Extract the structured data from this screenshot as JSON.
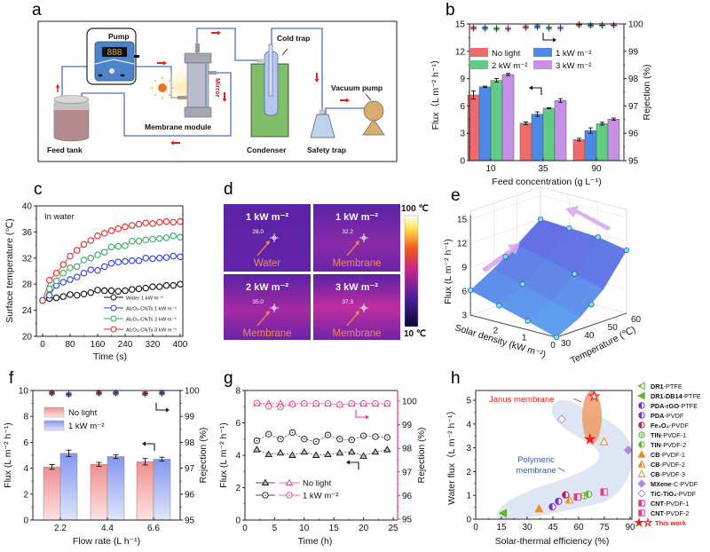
{
  "panel_labels": {
    "a": "a",
    "b": "b",
    "c": "c",
    "d": "d",
    "e": "e",
    "f": "f",
    "g": "g",
    "h": "h"
  },
  "schematic": {
    "pump": "Pump",
    "pump_display": "888",
    "mirror": "Mirror",
    "membrane_module": "Membrane module",
    "feed_tank": "Feed tank",
    "cold_trap": "Cold trap",
    "condenser": "Condenser",
    "safety_trap": "Safety trap",
    "vacuum_pump": "Vacuum pump",
    "colors": {
      "pipe": "#4a72c9",
      "flow_arrow": "#e32020",
      "condenser": "#7fbf6a",
      "module": "#a9adb8",
      "pump_body": "#4d83c9"
    }
  },
  "thermal_images": {
    "colorbar_max": "100 ℃",
    "colorbar_min": "10 ℃",
    "tiles": [
      {
        "title": "1 kW m⁻²",
        "reading": "28.0",
        "target": "Water"
      },
      {
        "title": "1 kW m⁻²",
        "reading": "32.2",
        "target": "Membrane"
      },
      {
        "title": "2 kW m⁻²",
        "reading": "35.0",
        "target": "Membrane"
      },
      {
        "title": "3 kW m⁻²",
        "reading": "37.3",
        "target": "Membrane"
      }
    ]
  },
  "chart_data": [
    {
      "panel": "b",
      "type": "bar",
      "categories": [
        "10",
        "35",
        "90"
      ],
      "xlabel": "Feed concentration (g L⁻¹)",
      "ylabel": "Flux（L m⁻² h⁻¹）",
      "y2label": "Rejection (%)",
      "ylim": [
        0,
        15
      ],
      "yticks": [
        "0",
        "3",
        "6",
        "9",
        "12",
        "15"
      ],
      "y2lim": [
        95,
        100
      ],
      "y2ticks": [
        "95",
        "96",
        "97",
        "98",
        "99",
        "100"
      ],
      "series": [
        {
          "name": "No light",
          "color": "#ef6b6b",
          "values": [
            7.2,
            4.1,
            2.3
          ],
          "errors": [
            0.45,
            0.15,
            0.15
          ],
          "rejection": [
            99.85,
            99.88,
            99.97
          ]
        },
        {
          "name": "1 kW m⁻²",
          "color": "#4a8ae6",
          "values": [
            8.1,
            5.1,
            3.3
          ],
          "errors": [
            0.08,
            0.25,
            0.3
          ],
          "rejection": [
            99.85,
            99.9,
            99.95
          ]
        },
        {
          "name": "2 kW m⁻²",
          "color": "#5fcb86",
          "values": [
            8.8,
            5.75,
            4.05
          ],
          "errors": [
            0.2,
            0.05,
            0.15
          ],
          "rejection": [
            99.83,
            99.85,
            99.95
          ]
        },
        {
          "name": "3 kW m⁻²",
          "color": "#c590e6",
          "values": [
            9.45,
            6.6,
            4.55
          ],
          "errors": [
            0.12,
            0.2,
            0.12
          ],
          "rejection": [
            99.83,
            99.85,
            99.95
          ]
        }
      ],
      "legend": "top"
    },
    {
      "panel": "c",
      "type": "line",
      "xlabel": "Time (s)",
      "ylabel": "Surface temperature (℃)",
      "annotation": "In water",
      "xlim": [
        0,
        400
      ],
      "xticks": [
        "0",
        "80",
        "160",
        "240",
        "320",
        "400"
      ],
      "ylim": [
        20,
        40
      ],
      "yticks": [
        "20",
        "24",
        "28",
        "32",
        "36",
        "40"
      ],
      "x": [
        0,
        20,
        40,
        60,
        80,
        100,
        120,
        140,
        160,
        180,
        200,
        220,
        240,
        260,
        280,
        300,
        320,
        340,
        360,
        380,
        400
      ],
      "series": [
        {
          "name": "Water 1 kW m⁻²",
          "color": "#111111",
          "values": [
            25.5,
            25.8,
            25.9,
            26.1,
            26.4,
            26.3,
            26.5,
            26.7,
            27.1,
            27.0,
            27.0,
            26.9,
            27.0,
            27.2,
            27.3,
            27.4,
            27.6,
            27.6,
            27.8,
            27.8,
            28.0
          ]
        },
        {
          "name": "Al₂O₃-CNTs 1 kW m⁻²",
          "color": "#2b3ee0",
          "values": [
            25.5,
            26.3,
            27.8,
            28.3,
            28.7,
            29.1,
            29.7,
            30.2,
            30.1,
            30.7,
            31.2,
            31.4,
            31.5,
            31.6,
            31.6,
            32.0,
            31.9,
            32.0,
            32.1,
            32.3,
            32.2
          ]
        },
        {
          "name": "Al₂O₃-CNTs 2 kW m⁻²",
          "color": "#36a866",
          "values": [
            25.5,
            27.3,
            28.5,
            29.7,
            30.5,
            30.7,
            31.7,
            32.0,
            32.5,
            32.9,
            33.7,
            33.8,
            33.9,
            34.6,
            34.6,
            34.8,
            34.9,
            35.0,
            35.1,
            35.4,
            35.2
          ]
        },
        {
          "name": "Al₂O₃-CNTs 3 kW m⁻²",
          "color": "#e52a2a",
          "values": [
            25.5,
            28.6,
            29.7,
            31.0,
            32.3,
            33.2,
            34.1,
            34.7,
            35.4,
            35.8,
            36.2,
            36.5,
            36.8,
            37.0,
            37.2,
            37.4,
            37.3,
            37.5,
            37.6,
            37.5,
            37.6
          ]
        }
      ],
      "legend": "bottom-right"
    },
    {
      "panel": "e",
      "type": "surface",
      "xlabel": "Solar density (kW m⁻²)",
      "ylabel": "Temperature (℃)",
      "zlabel": "Flux (L m⁻² h⁻¹)",
      "solar_density": [
        0,
        1,
        2,
        3
      ],
      "solar_ticks": [
        "0",
        "1",
        "2"
      ],
      "temperature": [
        30,
        40,
        50,
        60
      ],
      "temperature_ticks": [
        "30",
        "40",
        "50",
        "60"
      ],
      "zlim": [
        3,
        15
      ],
      "zticks": [
        "3",
        "6",
        "9",
        "12",
        "15"
      ],
      "flux_grid": [
        [
          3.0,
          4.5,
          7.0,
          10.9
        ],
        [
          4.1,
          5.7,
          8.0,
          11.6
        ],
        [
          5.1,
          6.8,
          9.0,
          11.8
        ],
        [
          6.1,
          7.8,
          9.8,
          12.0
        ]
      ],
      "points": [
        {
          "s": 0,
          "t": 30,
          "f": 3.0
        },
        {
          "s": 1,
          "t": 30,
          "f": 4.1
        },
        {
          "s": 2,
          "t": 30,
          "f": 5.1
        },
        {
          "s": 3,
          "t": 30,
          "f": 6.1
        },
        {
          "s": 3,
          "t": 45,
          "f": 8.8
        },
        {
          "s": 3,
          "t": 60,
          "f": 12.0
        },
        {
          "s": 2,
          "t": 60,
          "f": 11.8
        },
        {
          "s": 1,
          "t": 60,
          "f": 11.6
        },
        {
          "s": 0,
          "t": 60,
          "f": 10.9
        },
        {
          "s": 2,
          "t": 40,
          "f": 6.8
        },
        {
          "s": 1,
          "t": 50,
          "f": 8.0
        },
        {
          "s": 0,
          "t": 45,
          "f": 5.6
        }
      ],
      "surface_color": "#5a78e0",
      "arrow_color": "#d8a6f0"
    },
    {
      "panel": "f",
      "type": "bar",
      "categories": [
        "2.2",
        "4.4",
        "6.6"
      ],
      "xlabel": "Flow rate (L h⁻¹)",
      "ylabel": "Flux (L m⁻² h⁻¹)",
      "y2label": "Rejection (%)",
      "ylim": [
        0,
        10
      ],
      "yticks": [
        "0",
        "2",
        "4",
        "6",
        "8",
        "10"
      ],
      "y2lim": [
        95,
        100
      ],
      "y2ticks": [
        "95",
        "96",
        "97",
        "98",
        "99",
        "100"
      ],
      "series": [
        {
          "name": "No light",
          "color": "#f29a9a",
          "marker_color": "#a0283a",
          "values": [
            4.1,
            4.3,
            4.5
          ],
          "errors": [
            0.18,
            0.15,
            0.25
          ],
          "rejection": [
            99.9,
            99.9,
            99.88
          ]
        },
        {
          "name": "1 kW m⁻²",
          "color": "#8c9ff0",
          "marker_color": "#3a50c0",
          "values": [
            5.15,
            4.9,
            4.7
          ],
          "errors": [
            0.25,
            0.15,
            0.15
          ],
          "rejection": [
            99.85,
            99.9,
            99.9
          ]
        }
      ],
      "legend": "top-left"
    },
    {
      "panel": "g",
      "type": "line",
      "xlabel": "Time (h)",
      "ylabel": "Flux (L m⁻² h⁻¹)",
      "y2label": "Rejection (%)",
      "xlim": [
        0,
        25
      ],
      "xticks": [
        "0",
        "5",
        "10",
        "15",
        "20",
        "25"
      ],
      "ylim": [
        0,
        8
      ],
      "yticks": [
        "0",
        "2",
        "4",
        "6",
        "8"
      ],
      "y2lim": [
        95,
        100
      ],
      "y2ticks": [
        "95",
        "96",
        "97",
        "98",
        "99",
        "100"
      ],
      "y2color": "#e8368f",
      "x": [
        2,
        4,
        6,
        8,
        10,
        12,
        14,
        16,
        18,
        20,
        22,
        24
      ],
      "series": [
        {
          "name": "No light",
          "marker": "triangle",
          "flux": [
            4.35,
            4.05,
            4.15,
            4.0,
            4.2,
            4.0,
            4.05,
            4.15,
            4.2,
            3.95,
            4.2,
            4.35
          ],
          "rejection": [
            99.9,
            99.9,
            99.9,
            99.88,
            99.9,
            99.88,
            99.88,
            99.86,
            99.88,
            99.88,
            99.88,
            99.88
          ]
        },
        {
          "name": "1 kW m⁻²",
          "marker": "circle",
          "flux": [
            4.9,
            5.3,
            5.0,
            5.4,
            5.0,
            4.85,
            5.25,
            5.0,
            4.95,
            5.2,
            5.15,
            5.1
          ],
          "rejection": [
            99.92,
            99.78,
            99.75,
            99.88,
            99.9,
            99.9,
            99.9,
            99.85,
            99.9,
            99.9,
            99.9,
            99.9
          ]
        }
      ],
      "legend": "bottom-left"
    },
    {
      "panel": "h",
      "type": "scatter",
      "xlabel": "Solar-thermal efficiency (%)",
      "ylabel": "Water flux（L m⁻² h⁻¹）",
      "xlim": [
        0,
        90
      ],
      "xticks": [
        "0",
        "15",
        "30",
        "45",
        "60",
        "75",
        "90"
      ],
      "ylim": [
        0,
        5
      ],
      "yticks": [
        "0",
        "1",
        "2",
        "3",
        "4",
        "5"
      ],
      "annotations": {
        "janus": "Janus membrane",
        "polymeric_1": "Polymeric",
        "polymeric_2": "membrane"
      },
      "series": [
        {
          "bold": "DR1",
          "rest": "-PTFE",
          "marker": "tri-left",
          "fill": "half",
          "color": "#5cb82e",
          "x": 16,
          "y": 0.25
        },
        {
          "bold": "DR1-DB14",
          "rest": "-PTFE",
          "marker": "tri-left",
          "fill": "full",
          "color": "#5cb82e",
          "x": 16,
          "y": 0.25
        },
        {
          "bold": "PDA-rGO",
          "rest": "-PTFE",
          "marker": "circle",
          "fill": "half",
          "color": "#7a2ee0",
          "x": 48.3,
          "y": 0.75
        },
        {
          "bold": "PDA",
          "rest": "-PVDF",
          "marker": "circle",
          "fill": "half",
          "color": "#7a2ee0",
          "x": 44.7,
          "y": 0.52
        },
        {
          "bold": "Fe₃O₄",
          "rest": "-PVDF",
          "marker": "circle",
          "fill": "half",
          "color": "#b0206a",
          "x": 52.4,
          "y": 1.02
        },
        {
          "bold": "TIN",
          "rest": "-PVDF-1",
          "marker": "circle-plus",
          "fill": "open",
          "color": "#5cb82e",
          "x": 63.3,
          "y": 0.98
        },
        {
          "bold": "TIN",
          "rest": "-PVDF-2",
          "marker": "circle",
          "fill": "half",
          "color": "#5cb82e",
          "x": 65.8,
          "y": 1.05
        },
        {
          "bold": "CB",
          "rest": "-PVDF-1",
          "marker": "triangle",
          "fill": "full",
          "color": "#f08a1c",
          "x": 36.9,
          "y": 0.44
        },
        {
          "bold": "CB",
          "rest": "-PVDF-2",
          "marker": "triangle",
          "fill": "half",
          "color": "#f08a1c",
          "x": 54.6,
          "y": 0.81
        },
        {
          "bold": "CB",
          "rest": "-PVDF-3",
          "marker": "triangle",
          "fill": "open",
          "color": "#f08a1c",
          "x": 74.8,
          "y": 3.26
        },
        {
          "bold": "MXene",
          "rest": "-C-PVDF",
          "marker": "diamond",
          "fill": "full",
          "color": "#b08ae2",
          "x": 88.9,
          "y": 2.9
        },
        {
          "bold": "TiC-TiO₂",
          "rest": "-PVDF",
          "marker": "diamond",
          "fill": "open",
          "color": "#b08ae2",
          "x": 50.1,
          "y": 4.2
        },
        {
          "bold": "CNT",
          "rest": "-PVDF-1",
          "marker": "square",
          "fill": "half",
          "color": "#e8368f",
          "x": 59.3,
          "y": 0.93
        },
        {
          "bold": "CNT",
          "rest": "-PVDF-2",
          "marker": "square",
          "fill": "half",
          "color": "#e8368f",
          "x": 74.8,
          "y": 1.14
        }
      ],
      "this_work": {
        "label": "This work",
        "color": "#ee1c1c",
        "points": [
          {
            "x": 66.6,
            "y": 3.36,
            "fill": "full"
          },
          {
            "x": 69,
            "y": 5.16,
            "fill": "open"
          }
        ]
      },
      "legend": "right"
    }
  ]
}
